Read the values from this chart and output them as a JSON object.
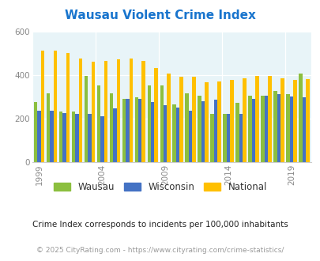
{
  "title": "Wausau Violent Crime Index",
  "title_color": "#1874CD",
  "subtitle": "Crime Index corresponds to incidents per 100,000 inhabitants",
  "footer": "© 2025 CityRating.com - https://www.cityrating.com/crime-statistics/",
  "years": [
    1999,
    2000,
    2001,
    2002,
    2003,
    2004,
    2005,
    2006,
    2007,
    2008,
    2009,
    2010,
    2011,
    2012,
    2013,
    2014,
    2015,
    2016,
    2017,
    2018,
    2019,
    2020
  ],
  "wausau": [
    275,
    315,
    230,
    230,
    395,
    350,
    315,
    290,
    295,
    350,
    350,
    265,
    315,
    305,
    220,
    220,
    270,
    305,
    305,
    325,
    310,
    405
  ],
  "wisconsin": [
    235,
    235,
    225,
    220,
    220,
    210,
    245,
    290,
    290,
    275,
    260,
    250,
    235,
    280,
    285,
    220,
    220,
    290,
    305,
    310,
    300,
    295
  ],
  "national": [
    510,
    510,
    500,
    475,
    460,
    465,
    470,
    475,
    465,
    430,
    405,
    390,
    390,
    365,
    370,
    375,
    385,
    395,
    395,
    385,
    375,
    380
  ],
  "wausau_color": "#8CBF3F",
  "wisconsin_color": "#4472C4",
  "national_color": "#FFC000",
  "bg_color": "#E8F4F8",
  "plot_bg": "#E8F4F8",
  "fig_bg": "#FFFFFF",
  "ylim": [
    0,
    600
  ],
  "yticks": [
    0,
    200,
    400,
    600
  ],
  "xtick_years": [
    1999,
    2004,
    2009,
    2014,
    2019
  ],
  "bar_width": 0.28,
  "legend_labels": [
    "Wausau",
    "Wisconsin",
    "National"
  ]
}
